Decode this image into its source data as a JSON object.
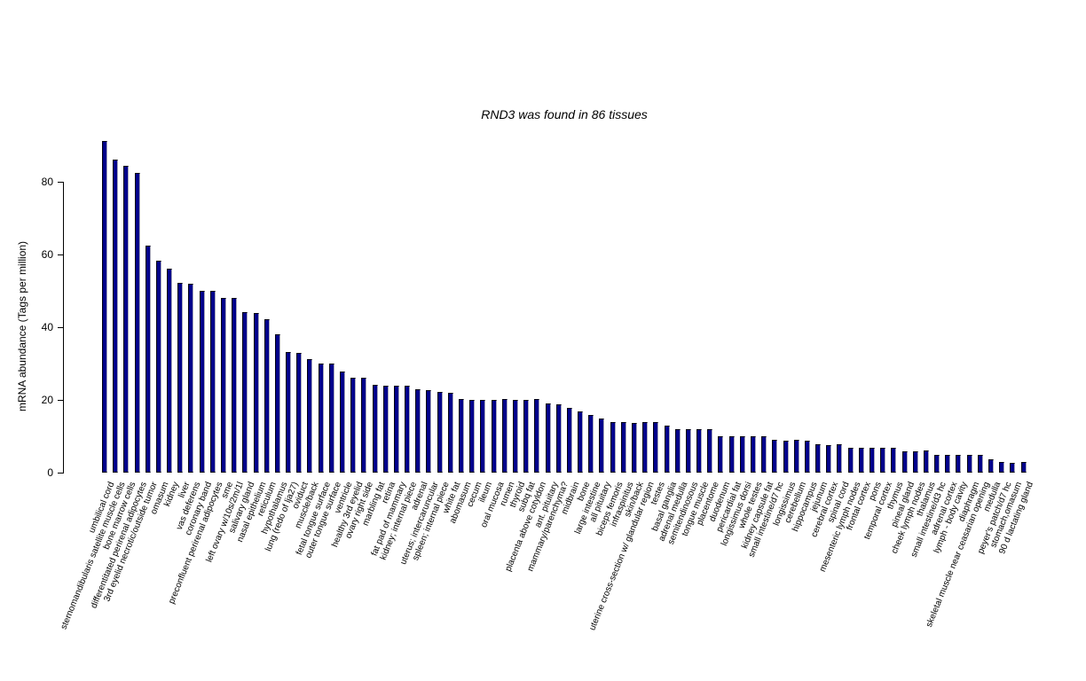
{
  "header": {
    "gene": "RND3",
    "tissue_count": "86"
  },
  "chart_data": {
    "type": "bar",
    "title": "RND3  was found in  86  tissues",
    "xlabel": "",
    "ylabel": "mRNA abundance (Tags per million)",
    "ylim": [
      0,
      93
    ],
    "yticks": [
      0,
      20,
      40,
      60,
      80
    ],
    "grid": false,
    "legend": false,
    "bar_color": "#00008b",
    "categories": [
      "umbilical cord",
      "sternomandibularis satellite muscle cells",
      "bone marrow cells",
      "differentitated perirenal adipocytes",
      "3rd eyelid necrotic/outside tumor",
      "omasum",
      "kidney",
      "liver",
      "vas deferens",
      "coronary band",
      "preconfluent perirenal adipocytes",
      "sme",
      "left ovary w/10s/2m/1l",
      "salivary gland",
      "nasal epithelium",
      "reticulum",
      "hypothalamus",
      "lung (redo of lja27)",
      "oviduct",
      "muscle/back",
      "fetal tongue surface",
      "outer tongue surface",
      "ventricle",
      "healthy 3rd eyelid",
      "ovary right side",
      "marbling fat",
      "retina",
      "fat pad of mammary",
      "kidney; internal piece",
      "adrenal",
      "uterus; intercaruncular",
      "spleen; internal piece",
      "white fat",
      "abomasum",
      "cecum",
      "ileum",
      "oral mucosa",
      "rumen",
      "thyroid",
      "subq fat",
      "placenta above cotyldon",
      "ant. pituitary",
      "mammary/parenchyma?",
      "midbrain",
      "bone",
      "large intestine",
      "all pituitary",
      "biceps femoris",
      "infraspinitus",
      "skin/back",
      "uterine cross-section w/ glandular region",
      "testes",
      "basal ganglia",
      "adrenal medulla",
      "semitendinosous",
      "tongue muscle",
      "placentome",
      "duodenum",
      "pericardial fat",
      "longissimus dorsi",
      "whole testes",
      "kidney capsule fat",
      "small intestine/d7 hc",
      "longissimus",
      "cerebellum",
      "hippocampus",
      "jejunum",
      "cerebral cortex",
      "spinal cord",
      "mesenteric lymph nodes",
      "frontal cortex",
      "pons",
      "temporal cortex",
      "thymus",
      "pineal gland",
      "cheek lymph nodes",
      "thalamus",
      "small intestine/d3 hc",
      "adrenal cortex",
      "lymph - body cavity",
      "diaphragm",
      "skeletal muscle near ceasarian opening",
      "medulla",
      "peyer's patch/d7 hc",
      "stomach,omasum",
      "90 d lactating gland"
    ],
    "values": [
      91.3,
      86.2,
      84.3,
      82.4,
      62.4,
      58.2,
      56.1,
      52.2,
      52.0,
      50.1,
      49.9,
      48.0,
      48.0,
      44.1,
      44.0,
      42.1,
      38.1,
      33.2,
      33.0,
      31.1,
      30.0,
      29.9,
      27.9,
      26.0,
      26.0,
      24.1,
      24.0,
      23.9,
      23.9,
      22.9,
      22.8,
      22.2,
      22.0,
      20.2,
      20.1,
      20.0,
      20.0,
      20.2,
      20.0,
      20.0,
      20.2,
      19.0,
      18.9,
      17.9,
      16.9,
      15.9,
      15.0,
      13.8,
      13.8,
      13.7,
      13.8,
      13.9,
      12.9,
      11.9,
      12.0,
      11.9,
      12.0,
      9.9,
      9.9,
      9.9,
      9.9,
      10.1,
      9.0,
      8.8,
      9.0,
      8.8,
      7.8,
      7.6,
      7.7,
      6.8,
      6.8,
      6.8,
      6.9,
      6.8,
      5.8,
      5.9,
      6.0,
      4.9,
      4.9,
      4.8,
      4.9,
      4.8,
      3.7,
      2.9,
      2.7,
      3.0
    ]
  }
}
